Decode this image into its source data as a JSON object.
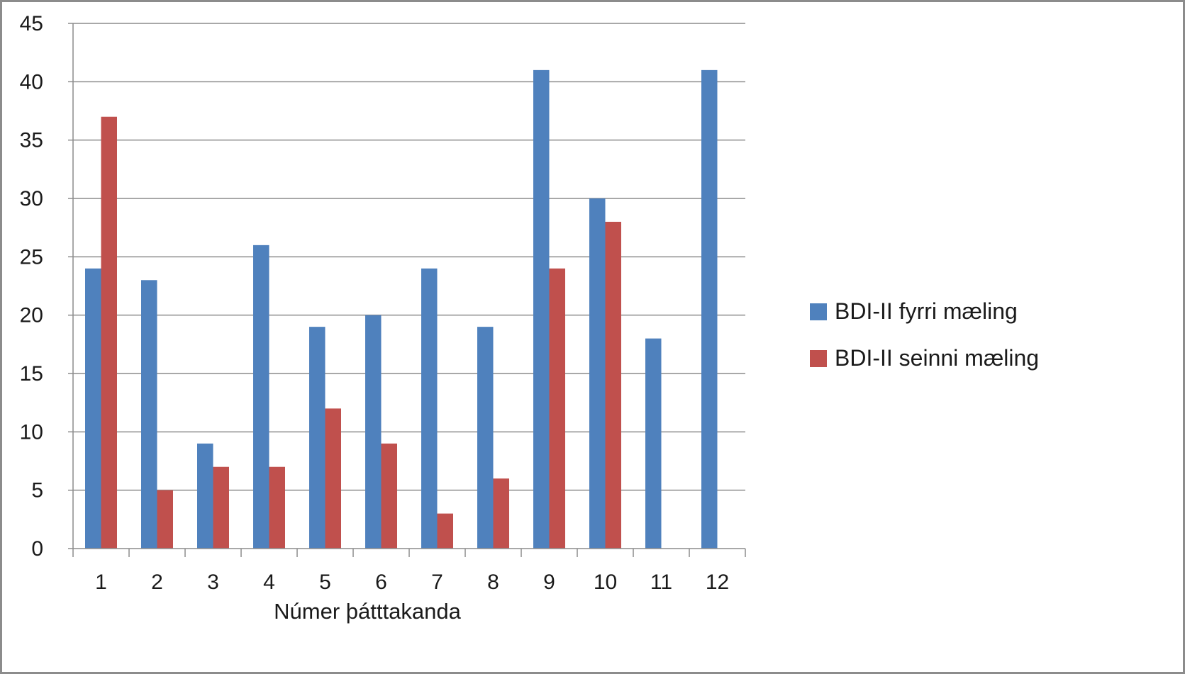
{
  "chart_data": {
    "type": "bar",
    "categories": [
      "1",
      "2",
      "3",
      "4",
      "5",
      "6",
      "7",
      "8",
      "9",
      "10",
      "11",
      "12"
    ],
    "series": [
      {
        "name": "BDI-II fyrri mæling",
        "values": [
          24,
          23,
          9,
          26,
          19,
          20,
          24,
          19,
          41,
          30,
          18,
          41
        ],
        "color": "#4f81bd"
      },
      {
        "name": "BDI-II seinni mæling",
        "values": [
          37,
          5,
          7,
          7,
          12,
          9,
          3,
          6,
          24,
          28,
          null,
          null
        ],
        "color": "#c0504d"
      }
    ],
    "title": "",
    "xlabel": "Númer þátttakanda",
    "ylabel": "",
    "ylim": [
      0,
      45
    ],
    "yticks": [
      0,
      5,
      10,
      15,
      20,
      25,
      30,
      35,
      40,
      45
    ],
    "grid": true,
    "legend_position": "right"
  }
}
